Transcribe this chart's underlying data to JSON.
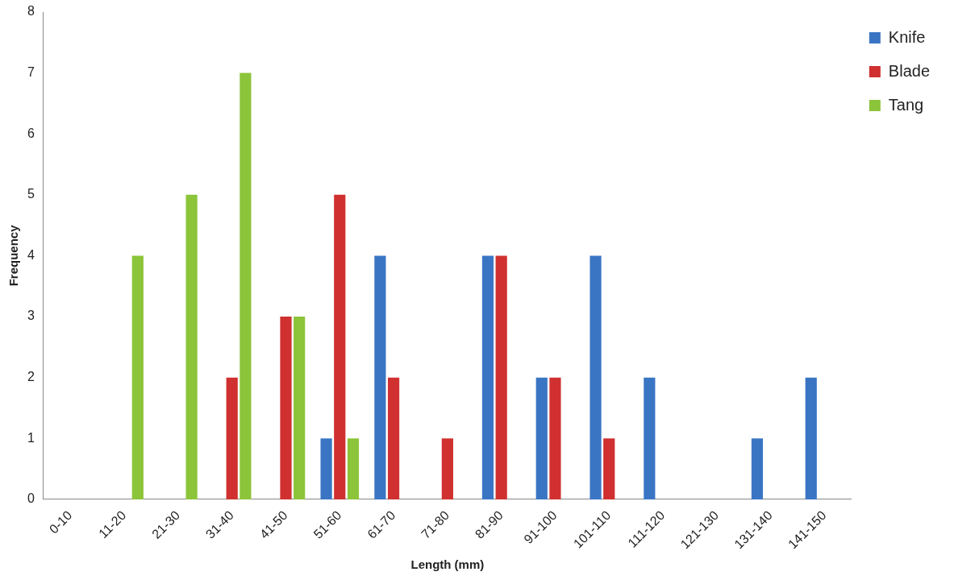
{
  "chart_data": {
    "type": "bar",
    "xlabel": "Length (mm)",
    "ylabel": "Frequency",
    "categories": [
      "0-10",
      "11-20",
      "21-30",
      "31-40",
      "41-50",
      "51-60",
      "61-70",
      "71-80",
      "81-90",
      "91-100",
      "101-110",
      "111-120",
      "121-130",
      "131-140",
      "141-150"
    ],
    "series": [
      {
        "name": "Knife",
        "color": "#3a75c4",
        "values": [
          0,
          0,
          0,
          0,
          0,
          1,
          4,
          0,
          4,
          2,
          4,
          2,
          0,
          1,
          2
        ]
      },
      {
        "name": "Blade",
        "color": "#d03030",
        "values": [
          0,
          0,
          0,
          2,
          3,
          5,
          2,
          1,
          4,
          2,
          1,
          0,
          0,
          0,
          0
        ]
      },
      {
        "name": "Tang",
        "color": "#8cc43a",
        "values": [
          0,
          4,
          5,
          7,
          3,
          1,
          0,
          0,
          0,
          0,
          0,
          0,
          0,
          0,
          0
        ]
      }
    ],
    "ylim": [
      0,
      8
    ],
    "yticks": [
      0,
      1,
      2,
      3,
      4,
      5,
      6,
      7,
      8
    ],
    "grid": false,
    "legend": "top right"
  }
}
